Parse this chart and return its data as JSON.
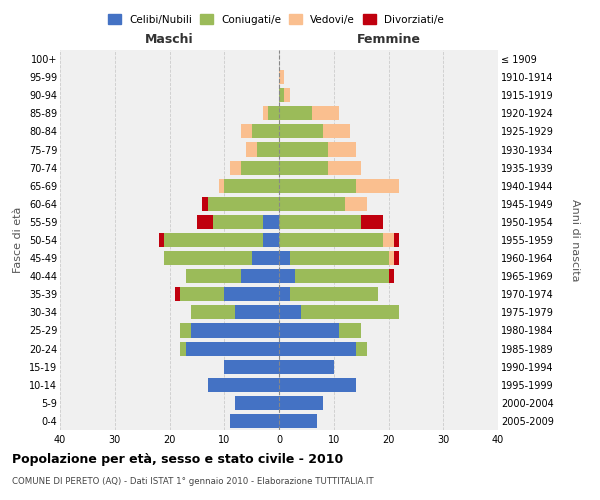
{
  "age_groups": [
    "0-4",
    "5-9",
    "10-14",
    "15-19",
    "20-24",
    "25-29",
    "30-34",
    "35-39",
    "40-44",
    "45-49",
    "50-54",
    "55-59",
    "60-64",
    "65-69",
    "70-74",
    "75-79",
    "80-84",
    "85-89",
    "90-94",
    "95-99",
    "100+"
  ],
  "birth_years": [
    "2005-2009",
    "2000-2004",
    "1995-1999",
    "1990-1994",
    "1985-1989",
    "1980-1984",
    "1975-1979",
    "1970-1974",
    "1965-1969",
    "1960-1964",
    "1955-1959",
    "1950-1954",
    "1945-1949",
    "1940-1944",
    "1935-1939",
    "1930-1934",
    "1925-1929",
    "1920-1924",
    "1915-1919",
    "1910-1914",
    "≤ 1909"
  ],
  "colors": {
    "celibi": "#4472C4",
    "coniugati": "#9BBB59",
    "vedovi": "#FABF8F",
    "divorziati": "#C0000E"
  },
  "males": {
    "celibi": [
      9,
      8,
      13,
      10,
      17,
      16,
      8,
      10,
      7,
      5,
      3,
      3,
      0,
      0,
      0,
      0,
      0,
      0,
      0,
      0,
      0
    ],
    "coniugati": [
      0,
      0,
      0,
      0,
      1,
      2,
      8,
      8,
      10,
      16,
      18,
      9,
      13,
      10,
      7,
      4,
      5,
      2,
      0,
      0,
      0
    ],
    "vedovi": [
      0,
      0,
      0,
      0,
      0,
      0,
      0,
      0,
      0,
      0,
      0,
      0,
      0,
      1,
      2,
      2,
      2,
      1,
      0,
      0,
      0
    ],
    "divorziati": [
      0,
      0,
      0,
      0,
      0,
      0,
      0,
      1,
      0,
      0,
      1,
      3,
      1,
      0,
      0,
      0,
      0,
      0,
      0,
      0,
      0
    ]
  },
  "females": {
    "celibi": [
      7,
      8,
      14,
      10,
      14,
      11,
      4,
      2,
      3,
      2,
      0,
      0,
      0,
      0,
      0,
      0,
      0,
      0,
      0,
      0,
      0
    ],
    "coniugati": [
      0,
      0,
      0,
      0,
      2,
      4,
      18,
      16,
      17,
      18,
      19,
      15,
      12,
      14,
      9,
      9,
      8,
      6,
      1,
      0,
      0
    ],
    "vedovi": [
      0,
      0,
      0,
      0,
      0,
      0,
      0,
      0,
      0,
      1,
      2,
      0,
      4,
      8,
      6,
      5,
      5,
      5,
      1,
      1,
      0
    ],
    "divorziati": [
      0,
      0,
      0,
      0,
      0,
      0,
      0,
      0,
      1,
      1,
      1,
      4,
      0,
      0,
      0,
      0,
      0,
      0,
      0,
      0,
      0
    ]
  },
  "xlim": 40,
  "title": "Popolazione per età, sesso e stato civile - 2010",
  "subtitle": "COMUNE DI PERETO (AQ) - Dati ISTAT 1° gennaio 2010 - Elaborazione TUTTITALIA.IT",
  "xlabel_left": "Maschi",
  "xlabel_right": "Femmine",
  "ylabel_left": "Fasce di età",
  "ylabel_right": "Anni di nascita",
  "legend_labels": [
    "Celibi/Nubili",
    "Coniugati/e",
    "Vedovi/e",
    "Divorziati/e"
  ],
  "bg_color": "#ffffff",
  "plot_bg_color": "#f0f0f0",
  "grid_color": "#cccccc"
}
